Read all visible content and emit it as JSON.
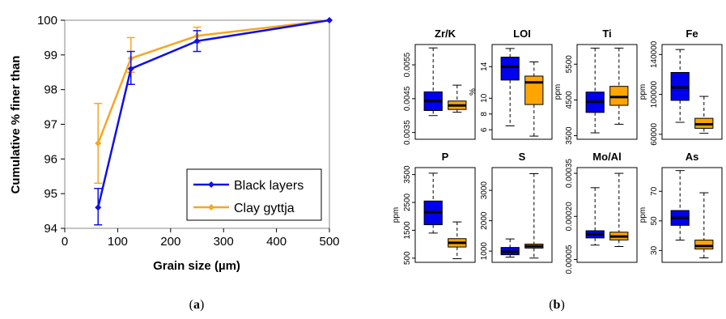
{
  "figure": {
    "caption_a_letter": "a",
    "caption_b_letter": "b"
  },
  "chart_data": [
    {
      "type": "line",
      "panel": "a",
      "title": "",
      "xlabel": "Grain size (µm)",
      "ylabel": "Cumulative % finer than",
      "xlim": [
        0,
        500
      ],
      "ylim": [
        94,
        100
      ],
      "xticks": [
        "0",
        "100",
        "200",
        "300",
        "400",
        "500"
      ],
      "yticks": [
        "94",
        "95",
        "96",
        "97",
        "98",
        "99",
        "100"
      ],
      "grid": false,
      "legend": "bottom-right",
      "series": [
        {
          "name": "Black layers",
          "color": "#1010e8",
          "x": [
            63,
            125,
            250,
            500
          ],
          "y": [
            94.6,
            98.6,
            99.4,
            100
          ],
          "err_upper": [
            0.55,
            0.5,
            0.3,
            0
          ],
          "err_lower": [
            0.5,
            0.45,
            0.3,
            0
          ]
        },
        {
          "name": "Clay gyttja",
          "color": "#f5a623",
          "x": [
            63,
            125,
            250,
            500
          ],
          "y": [
            96.45,
            98.9,
            99.55,
            100
          ],
          "err_upper": [
            1.15,
            0.6,
            0.25,
            0
          ],
          "err_lower": [
            1.15,
            0.4,
            0.2,
            0
          ]
        }
      ]
    },
    {
      "type": "box",
      "panel": "b",
      "groups": [
        "Black layers",
        "Clay gyttja"
      ],
      "group_colors": [
        "#0000ee",
        "#ffa500"
      ],
      "panels": [
        {
          "title": "Zr/K",
          "ylabel": "",
          "ylim": [
            0.0033,
            0.0061
          ],
          "yticks": [
            0.0035,
            0.0045,
            0.0055
          ],
          "ytick_labels": [
            "0.0035",
            "0.0045",
            "0.0055"
          ],
          "boxes": [
            {
              "min": 0.004,
              "q1": 0.00415,
              "median": 0.00443,
              "q3": 0.0047,
              "max": 0.006
            },
            {
              "min": 0.0041,
              "q1": 0.00418,
              "median": 0.0043,
              "q3": 0.00443,
              "max": 0.0049
            }
          ]
        },
        {
          "title": "LOI",
          "ylabel": "%",
          "ylim": [
            4.8,
            16.8
          ],
          "yticks": [
            6,
            8,
            10,
            14
          ],
          "ytick_labels": [
            "6",
            "8",
            "10",
            "14"
          ],
          "boxes": [
            {
              "min": 6.5,
              "q1": 12.3,
              "median": 14.0,
              "q3": 15.2,
              "max": 16.3
            },
            {
              "min": 5.2,
              "q1": 9.2,
              "median": 12.0,
              "q3": 12.8,
              "max": 14.6
            }
          ]
        },
        {
          "title": "Ti",
          "ylabel": "ppm",
          "ylim": [
            3400,
            6050
          ],
          "yticks": [
            3500,
            4500,
            5500
          ],
          "ytick_labels": [
            "3500",
            "4500",
            "5500"
          ],
          "boxes": [
            {
              "min": 3580,
              "q1": 4150,
              "median": 4450,
              "q3": 4720,
              "max": 5950
            },
            {
              "min": 3820,
              "q1": 4350,
              "median": 4580,
              "q3": 4880,
              "max": 5950
            }
          ]
        },
        {
          "title": "Fe",
          "ylabel": "ppm",
          "ylim": [
            55000,
            150000
          ],
          "yticks": [
            60000,
            100000,
            140000
          ],
          "ytick_labels": [
            "60000",
            "100000",
            "140000"
          ],
          "boxes": [
            {
              "min": 72000,
              "q1": 94000,
              "median": 107000,
              "q3": 122000,
              "max": 145000
            },
            {
              "min": 61000,
              "q1": 66000,
              "median": 70000,
              "q3": 76000,
              "max": 98000
            }
          ]
        },
        {
          "title": "P",
          "ylabel": "ppm",
          "ylim": [
            350,
            3750
          ],
          "yticks": [
            500,
            1500,
            2500,
            3500
          ],
          "ytick_labels": [
            "500",
            "1500",
            "2500",
            "3500"
          ],
          "boxes": [
            {
              "min": 1400,
              "q1": 1700,
              "median": 2150,
              "q3": 2550,
              "max": 3550
            },
            {
              "min": 480,
              "q1": 900,
              "median": 1050,
              "q3": 1200,
              "max": 1800
            }
          ]
        },
        {
          "title": "S",
          "ylabel": "",
          "ylim": [
            630,
            3750
          ],
          "yticks": [
            1000,
            2000,
            3000
          ],
          "ytick_labels": [
            "1000",
            "2000",
            "3000"
          ],
          "boxes": [
            {
              "min": 800,
              "q1": 880,
              "median": 980,
              "q3": 1120,
              "max": 1400
            },
            {
              "min": 770,
              "q1": 1100,
              "median": 1160,
              "q3": 1230,
              "max": 3550
            }
          ]
        },
        {
          "title": "Mo/Al",
          "ylabel": "",
          "ylim": [
            4e-05,
            0.00037
          ],
          "yticks": [
            5e-05,
            0.0002,
            0.00035
          ],
          "ytick_labels": [
            "0.00005",
            "0.00020",
            "0.00035"
          ],
          "boxes": [
            {
              "min": 0.0001,
              "q1": 0.000125,
              "median": 0.000138,
              "q3": 0.00015,
              "max": 0.0003
            },
            {
              "min": 9.5e-05,
              "q1": 0.000118,
              "median": 0.00013,
              "q3": 0.000145,
              "max": 0.00035
            }
          ]
        },
        {
          "title": "As",
          "ylabel": "ppm",
          "ylim": [
            22,
            86
          ],
          "yticks": [
            30,
            50,
            70
          ],
          "ytick_labels": [
            "30",
            "50",
            "70"
          ],
          "boxes": [
            {
              "min": 37,
              "q1": 47,
              "median": 52,
              "q3": 57,
              "max": 84
            },
            {
              "min": 25,
              "q1": 31,
              "median": 33,
              "q3": 37,
              "max": 69
            }
          ]
        }
      ]
    }
  ]
}
